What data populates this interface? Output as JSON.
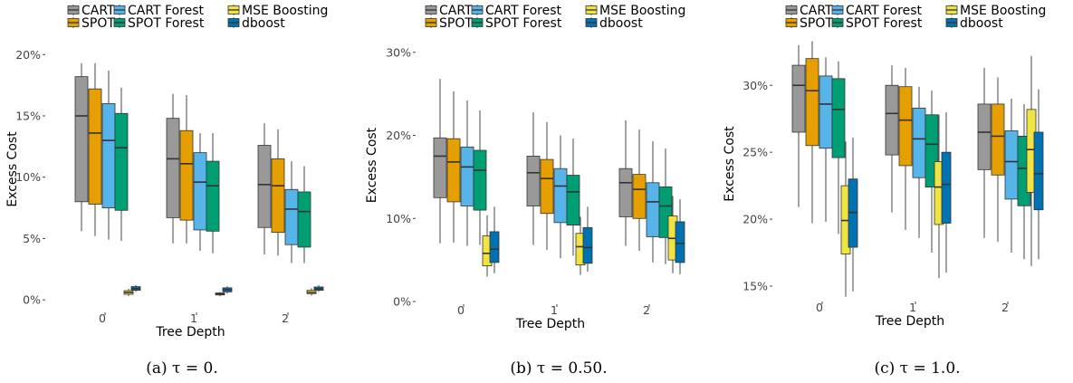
{
  "legend": {
    "rows": [
      [
        "CART",
        "CART Forest",
        "MSE Boosting"
      ],
      [
        "SPOT",
        "SPOT Forest",
        "dboost"
      ]
    ]
  },
  "series_colors": {
    "CART": "#999999",
    "SPOT": "#E69F00",
    "CART Forest": "#56B4E9",
    "SPOT Forest": "#009E73",
    "MSE Boosting": "#F0E442",
    "dboost": "#0072B2"
  },
  "chart_data": [
    {
      "type": "boxplot",
      "caption": "(a) τ = 0.",
      "xlabel": "Tree Depth",
      "ylabel": "Excess Cost",
      "categories": [
        "0",
        "1",
        "2"
      ],
      "yticks": [
        0,
        5,
        10,
        15,
        20
      ],
      "ytick_labels": [
        "0%",
        "5%",
        "10%",
        "15%",
        "20%"
      ],
      "ylim": [
        -0.8,
        21.2
      ],
      "series": [
        {
          "name": "CART",
          "boxes": [
            {
              "category": "0",
              "whislo": 5.6,
              "q1": 8.0,
              "med": 15.0,
              "q3": 18.2,
              "whishi": 19.3
            },
            {
              "category": "1",
              "whislo": 4.6,
              "q1": 6.7,
              "med": 11.5,
              "q3": 14.8,
              "whishi": 16.8
            },
            {
              "category": "2",
              "whislo": 3.7,
              "q1": 5.9,
              "med": 9.4,
              "q3": 12.6,
              "whishi": 14.4
            }
          ]
        },
        {
          "name": "SPOT",
          "boxes": [
            {
              "category": "0",
              "whislo": 5.2,
              "q1": 7.8,
              "med": 13.6,
              "q3": 17.2,
              "whishi": 19.3
            },
            {
              "category": "1",
              "whislo": 4.6,
              "q1": 6.5,
              "med": 11.1,
              "q3": 13.8,
              "whishi": 16.7
            },
            {
              "category": "2",
              "whislo": 3.6,
              "q1": 5.5,
              "med": 9.3,
              "q3": 11.5,
              "whishi": 13.9
            }
          ]
        },
        {
          "name": "CART Forest",
          "boxes": [
            {
              "category": "0",
              "whislo": 4.9,
              "q1": 7.5,
              "med": 13.0,
              "q3": 16.0,
              "whishi": 18.7
            },
            {
              "category": "1",
              "whislo": 4.0,
              "q1": 5.7,
              "med": 9.6,
              "q3": 12.0,
              "whishi": 13.6
            },
            {
              "category": "2",
              "whislo": 3.0,
              "q1": 4.5,
              "med": 7.4,
              "q3": 9.0,
              "whishi": 11.3
            }
          ]
        },
        {
          "name": "SPOT Forest",
          "boxes": [
            {
              "category": "0",
              "whislo": 4.8,
              "q1": 7.3,
              "med": 12.4,
              "q3": 15.2,
              "whishi": 17.3
            },
            {
              "category": "1",
              "whislo": 3.8,
              "q1": 5.6,
              "med": 9.3,
              "q3": 11.3,
              "whishi": 13.6
            },
            {
              "category": "2",
              "whislo": 3.0,
              "q1": 4.3,
              "med": 7.2,
              "q3": 8.8,
              "whishi": 10.9
            }
          ]
        },
        {
          "name": "MSE Boosting",
          "boxes": [
            {
              "category": "0",
              "whislo": 0.3,
              "q1": 0.45,
              "med": 0.6,
              "q3": 0.75,
              "whishi": 0.9
            },
            {
              "category": "1",
              "whislo": 0.3,
              "q1": 0.4,
              "med": 0.48,
              "q3": 0.56,
              "whishi": 0.65
            },
            {
              "category": "2",
              "whislo": 0.35,
              "q1": 0.5,
              "med": 0.62,
              "q3": 0.78,
              "whishi": 0.95
            }
          ]
        },
        {
          "name": "dboost",
          "boxes": [
            {
              "category": "0",
              "whislo": 0.65,
              "q1": 0.78,
              "med": 0.92,
              "q3": 1.08,
              "whishi": 1.2
            },
            {
              "category": "1",
              "whislo": 0.5,
              "q1": 0.65,
              "med": 0.82,
              "q3": 0.98,
              "whishi": 1.1
            },
            {
              "category": "2",
              "whislo": 0.65,
              "q1": 0.78,
              "med": 0.9,
              "q3": 1.05,
              "whishi": 1.2
            }
          ]
        }
      ]
    },
    {
      "type": "boxplot",
      "caption": "(b) τ = 0.50.",
      "xlabel": "Tree Depth",
      "ylabel": "Excess Cost",
      "categories": [
        "0",
        "1",
        "2"
      ],
      "yticks": [
        0,
        10,
        20,
        30
      ],
      "ytick_labels": [
        "0%",
        "10%",
        "20%",
        "30%"
      ],
      "ylim": [
        0,
        31.5
      ],
      "series": [
        {
          "name": "CART",
          "boxes": [
            {
              "category": "0",
              "whislo": 7.0,
              "q1": 12.5,
              "med": 17.5,
              "q3": 19.7,
              "whishi": 26.8
            },
            {
              "category": "1",
              "whislo": 6.8,
              "q1": 11.5,
              "med": 15.5,
              "q3": 17.5,
              "whishi": 22.8
            },
            {
              "category": "2",
              "whislo": 6.7,
              "q1": 10.2,
              "med": 14.3,
              "q3": 16.0,
              "whishi": 21.8
            }
          ]
        },
        {
          "name": "SPOT",
          "boxes": [
            {
              "category": "0",
              "whislo": 7.1,
              "q1": 12.0,
              "med": 16.8,
              "q3": 19.6,
              "whishi": 25.3
            },
            {
              "category": "1",
              "whislo": 6.2,
              "q1": 10.6,
              "med": 14.8,
              "q3": 17.1,
              "whishi": 21.6
            },
            {
              "category": "2",
              "whislo": 6.1,
              "q1": 10.0,
              "med": 13.5,
              "q3": 15.3,
              "whishi": 20.7
            }
          ]
        },
        {
          "name": "CART Forest",
          "boxes": [
            {
              "category": "0",
              "whislo": 6.7,
              "q1": 11.5,
              "med": 16.2,
              "q3": 18.6,
              "whishi": 24.2
            },
            {
              "category": "1",
              "whislo": 5.2,
              "q1": 9.5,
              "med": 13.9,
              "q3": 16.0,
              "whishi": 20.0
            },
            {
              "category": "2",
              "whislo": 4.7,
              "q1": 7.8,
              "med": 12.0,
              "q3": 14.3,
              "whishi": 19.3
            }
          ]
        },
        {
          "name": "SPOT Forest",
          "boxes": [
            {
              "category": "0",
              "whislo": 6.8,
              "q1": 11.0,
              "med": 15.8,
              "q3": 18.2,
              "whishi": 23.0
            },
            {
              "category": "1",
              "whislo": 5.5,
              "q1": 9.2,
              "med": 13.2,
              "q3": 15.2,
              "whishi": 19.6
            },
            {
              "category": "2",
              "whislo": 4.5,
              "q1": 7.7,
              "med": 11.5,
              "q3": 13.8,
              "whishi": 18.4
            }
          ]
        },
        {
          "name": "MSE Boosting",
          "boxes": [
            {
              "category": "0",
              "whislo": 3.0,
              "q1": 4.3,
              "med": 5.8,
              "q3": 7.9,
              "whishi": 10.4
            },
            {
              "category": "1",
              "whislo": 3.2,
              "q1": 4.4,
              "med": 6.6,
              "q3": 8.2,
              "whishi": 10.2
            },
            {
              "category": "2",
              "whislo": 3.4,
              "q1": 5.0,
              "med": 7.6,
              "q3": 10.3,
              "whishi": 12.7
            }
          ]
        },
        {
          "name": "dboost",
          "boxes": [
            {
              "category": "0",
              "whislo": 3.4,
              "q1": 4.7,
              "med": 6.3,
              "q3": 8.4,
              "whishi": 11.4
            },
            {
              "category": "1",
              "whislo": 3.6,
              "q1": 4.6,
              "med": 6.5,
              "q3": 8.9,
              "whishi": 11.4
            },
            {
              "category": "2",
              "whislo": 3.3,
              "q1": 4.7,
              "med": 7.0,
              "q3": 9.6,
              "whishi": 12.3
            }
          ]
        }
      ]
    },
    {
      "type": "boxplot",
      "caption": "(c) τ = 1.0.",
      "xlabel": "Tree Depth",
      "ylabel": "Excess Cost",
      "categories": [
        "0",
        "1",
        "2"
      ],
      "yticks": [
        15,
        20,
        25,
        30
      ],
      "ytick_labels": [
        "15%",
        "20%",
        "25%",
        "30%"
      ],
      "ylim": [
        14.05,
        33.4
      ],
      "series": [
        {
          "name": "CART",
          "boxes": [
            {
              "category": "0",
              "whislo": 20.9,
              "q1": 26.5,
              "med": 30.0,
              "q3": 31.5,
              "whishi": 33.0
            },
            {
              "category": "1",
              "whislo": 20.5,
              "q1": 24.8,
              "med": 27.9,
              "q3": 30.0,
              "whishi": 31.5
            },
            {
              "category": "2",
              "whislo": 18.6,
              "q1": 23.7,
              "med": 26.5,
              "q3": 28.6,
              "whishi": 31.3
            }
          ]
        },
        {
          "name": "SPOT",
          "boxes": [
            {
              "category": "0",
              "whislo": 19.7,
              "q1": 25.5,
              "med": 29.6,
              "q3": 32.0,
              "whishi": 33.3
            },
            {
              "category": "1",
              "whislo": 19.2,
              "q1": 24.0,
              "med": 27.4,
              "q3": 29.9,
              "whishi": 31.3
            },
            {
              "category": "2",
              "whislo": 18.3,
              "q1": 23.3,
              "med": 26.2,
              "q3": 28.6,
              "whishi": 30.6
            }
          ]
        },
        {
          "name": "CART Forest",
          "boxes": [
            {
              "category": "0",
              "whislo": 19.8,
              "q1": 25.3,
              "med": 28.6,
              "q3": 30.7,
              "whishi": 32.1
            },
            {
              "category": "1",
              "whislo": 18.6,
              "q1": 23.1,
              "med": 26.0,
              "q3": 28.3,
              "whishi": 29.9
            },
            {
              "category": "2",
              "whislo": 17.5,
              "q1": 21.5,
              "med": 24.3,
              "q3": 26.6,
              "whishi": 29.0
            }
          ]
        },
        {
          "name": "SPOT Forest",
          "boxes": [
            {
              "category": "0",
              "whislo": 18.9,
              "q1": 24.6,
              "med": 28.2,
              "q3": 30.5,
              "whishi": 31.8
            },
            {
              "category": "1",
              "whislo": 17.5,
              "q1": 22.4,
              "med": 25.6,
              "q3": 27.8,
              "whishi": 29.6
            },
            {
              "category": "2",
              "whislo": 17.0,
              "q1": 21.0,
              "med": 23.8,
              "q3": 26.2,
              "whishi": 28.6
            }
          ]
        },
        {
          "name": "MSE Boosting",
          "boxes": [
            {
              "category": "0",
              "whislo": 14.2,
              "q1": 17.4,
              "med": 19.9,
              "q3": 22.5,
              "whishi": 25.8
            },
            {
              "category": "1",
              "whislo": 15.6,
              "q1": 19.6,
              "med": 22.4,
              "q3": 24.3,
              "whishi": 27.8
            },
            {
              "category": "2",
              "whislo": 16.5,
              "q1": 22.0,
              "med": 25.2,
              "q3": 28.2,
              "whishi": 32.2
            }
          ]
        },
        {
          "name": "dboost",
          "boxes": [
            {
              "category": "0",
              "whislo": 14.6,
              "q1": 17.9,
              "med": 20.5,
              "q3": 23.0,
              "whishi": 26.1
            },
            {
              "category": "1",
              "whislo": 16.0,
              "q1": 19.7,
              "med": 22.6,
              "q3": 25.0,
              "whishi": 28.0
            },
            {
              "category": "2",
              "whislo": 17.0,
              "q1": 20.7,
              "med": 23.4,
              "q3": 26.5,
              "whishi": 29.7
            }
          ]
        }
      ]
    }
  ]
}
